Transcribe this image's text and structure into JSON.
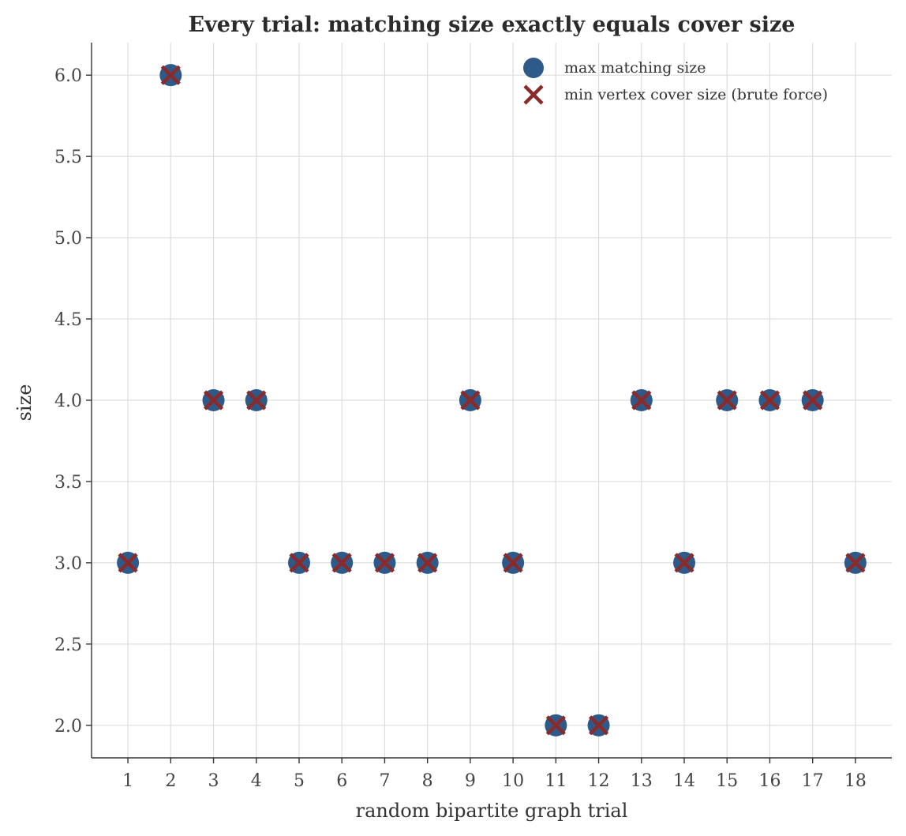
{
  "chart_data": {
    "type": "scatter",
    "title": "Every trial: matching size exactly equals cover size",
    "xlabel": "random bipartite graph trial",
    "ylabel": "size",
    "x": [
      1,
      2,
      3,
      4,
      5,
      6,
      7,
      8,
      9,
      10,
      11,
      12,
      13,
      14,
      15,
      16,
      17,
      18
    ],
    "x_ticks": [
      "1",
      "2",
      "3",
      "4",
      "5",
      "6",
      "7",
      "8",
      "9",
      "10",
      "11",
      "12",
      "13",
      "14",
      "15",
      "16",
      "17",
      "18"
    ],
    "y_ticks": [
      "2.0",
      "2.5",
      "3.0",
      "3.5",
      "4.0",
      "4.5",
      "5.0",
      "5.5",
      "6.0"
    ],
    "xlim": [
      0.15,
      18.85
    ],
    "ylim": [
      1.8,
      6.2
    ],
    "grid": true,
    "legend_position": "top-right",
    "series": [
      {
        "name": "max matching size",
        "marker": "circle",
        "color": "#2e5a8a",
        "values": [
          3,
          6,
          4,
          4,
          3,
          3,
          3,
          3,
          4,
          3,
          2,
          2,
          4,
          3,
          4,
          4,
          4,
          3
        ]
      },
      {
        "name": "min vertex cover size (brute force)",
        "marker": "x",
        "color": "#8b2a2a",
        "values": [
          3,
          6,
          4,
          4,
          3,
          3,
          3,
          3,
          4,
          3,
          2,
          2,
          4,
          3,
          4,
          4,
          4,
          3
        ]
      }
    ]
  }
}
